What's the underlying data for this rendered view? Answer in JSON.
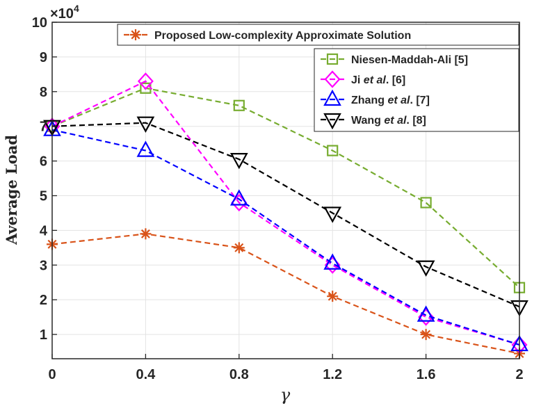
{
  "chart_data": {
    "type": "line",
    "title": "",
    "xlabel": "γ",
    "ylabel": "Average Load",
    "y_exponent_label": {
      "base": "×10",
      "exp": "4"
    },
    "x": [
      0,
      0.4,
      0.8,
      1.2,
      1.6,
      2
    ],
    "xticks": [
      "0",
      "0.4",
      "0.8",
      "1.2",
      "1.6",
      "2"
    ],
    "yticks": [
      "1",
      "2",
      "3",
      "4",
      "5",
      "6",
      "7",
      "8",
      "9",
      "10"
    ],
    "xlim": [
      0,
      2
    ],
    "ylim": [
      0.3,
      10
    ],
    "grid": true,
    "legend_position": "top-right",
    "series": [
      {
        "name": "Proposed Low-complexity Approximate Solution",
        "name_parts": [
          "Proposed Low-complexity Approximate Solution"
        ],
        "color": "#d95319",
        "marker": "asterisk",
        "values": [
          3.6,
          3.9,
          3.5,
          2.1,
          1.0,
          0.45
        ]
      },
      {
        "name": "Niesen-Maddah-Ali [5]",
        "name_parts": [
          "Niesen-Maddah-Ali [5]"
        ],
        "color": "#77ac30",
        "marker": "square",
        "values": [
          7.0,
          8.1,
          7.6,
          6.3,
          4.8,
          2.35
        ]
      },
      {
        "name": "Ji et al. [6]",
        "name_parts": [
          "Ji ",
          "et al",
          ". [6]"
        ],
        "color": "#ff00ff",
        "marker": "diamond",
        "values": [
          7.0,
          8.3,
          4.8,
          3.0,
          1.5,
          0.7
        ]
      },
      {
        "name": "Zhang et al. [7]",
        "name_parts": [
          "Zhang ",
          "et al",
          ". [7]"
        ],
        "color": "#0000ff",
        "marker": "triangle-up",
        "values": [
          6.9,
          6.3,
          4.9,
          3.05,
          1.55,
          0.7
        ]
      },
      {
        "name": "Wang et al. [8]",
        "name_parts": [
          "Wang ",
          "et al",
          ". [8]"
        ],
        "color": "#000000",
        "marker": "triangle-down",
        "values": [
          7.0,
          7.1,
          6.05,
          4.5,
          2.95,
          1.8
        ]
      }
    ]
  }
}
